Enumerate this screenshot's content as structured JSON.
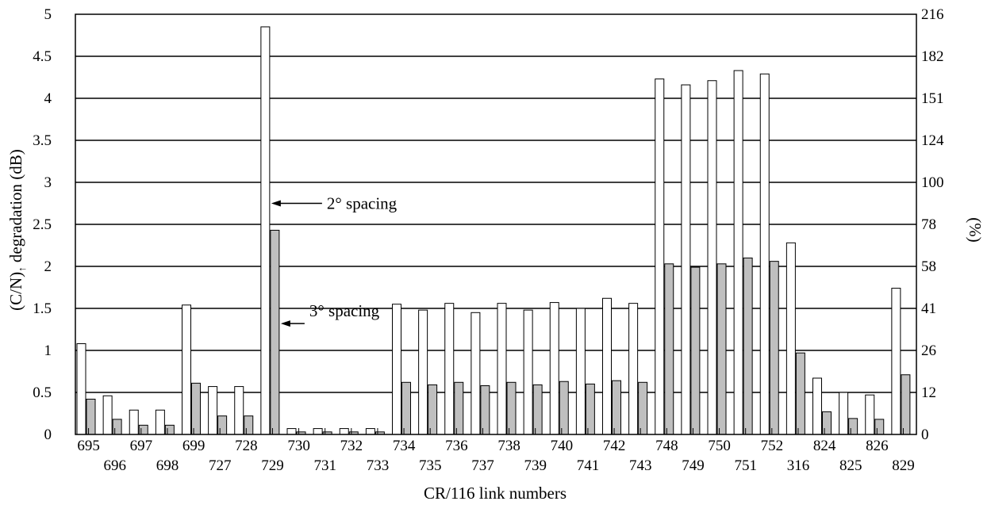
{
  "chart_data": {
    "type": "bar",
    "categories": [
      "695",
      "696",
      "697",
      "698",
      "699",
      "727",
      "728",
      "729",
      "730",
      "731",
      "732",
      "733",
      "734",
      "735",
      "736",
      "737",
      "738",
      "739",
      "740",
      "741",
      "742",
      "743",
      "748",
      "749",
      "750",
      "751",
      "752",
      "316",
      "824",
      "825",
      "826",
      "829"
    ],
    "series": [
      {
        "values": [
          1.08,
          0.46,
          0.29,
          0.29,
          1.54,
          0.57,
          0.57,
          4.85,
          0.07,
          0.07,
          0.07,
          0.07,
          1.55,
          1.48,
          1.56,
          1.45,
          1.56,
          1.48,
          1.57,
          1.5,
          1.62,
          1.56,
          4.23,
          4.16,
          4.21,
          4.33,
          4.29,
          2.28,
          0.67,
          0.5,
          0.47,
          1.74
        ],
        "color": "#ffffff"
      },
      {
        "values": [
          0.42,
          0.18,
          0.11,
          0.11,
          0.61,
          0.22,
          0.22,
          2.43,
          0.03,
          0.03,
          0.03,
          0.03,
          0.62,
          0.59,
          0.62,
          0.58,
          0.62,
          0.59,
          0.63,
          0.6,
          0.64,
          0.62,
          2.03,
          1.99,
          2.03,
          2.1,
          2.06,
          0.97,
          0.27,
          0.19,
          0.18,
          0.71
        ],
        "color": "#bfbfbf"
      }
    ],
    "xlabel": "CR/116 link numbers",
    "ylabel_prefix": "(C/N)",
    "ylabel_sub": "↑",
    "ylabel_suffix": " degradation (dB)",
    "y2label": "(%)",
    "ylim": [
      0,
      5
    ],
    "yticks": [
      "0",
      "0.5",
      "1",
      "1.5",
      "2",
      "2.5",
      "3",
      "3.5",
      "4",
      "4.5",
      "5"
    ],
    "y2ticks": [
      "0",
      "12",
      "26",
      "41",
      "58",
      "78",
      "100",
      "124",
      "151",
      "182",
      "216"
    ],
    "grid": true,
    "annotations": [
      {
        "text": "2° spacing",
        "target_category": "729",
        "target_series": 0,
        "target_value": 2.75
      },
      {
        "text": "3° spacing",
        "target_category": "729",
        "target_series": 1,
        "target_value": 1.32
      }
    ]
  }
}
